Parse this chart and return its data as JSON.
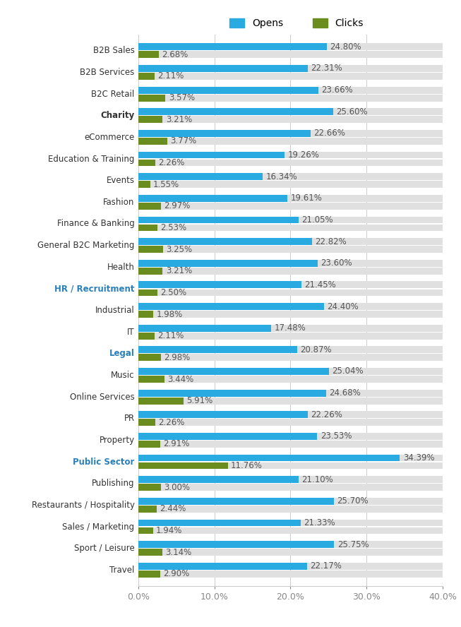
{
  "categories": [
    "B2B Sales",
    "B2B Services",
    "B2C Retail",
    "Charity",
    "eCommerce",
    "Education & Training",
    "Events",
    "Fashion",
    "Finance & Banking",
    "General B2C Marketing",
    "Health",
    "HR / Recruitment",
    "Industrial",
    "IT",
    "Legal",
    "Music",
    "Online Services",
    "PR",
    "Property",
    "Public Sector",
    "Publishing",
    "Restaurants / Hospitality",
    "Sales / Marketing",
    "Sport / Leisure",
    "Travel"
  ],
  "opens": [
    24.8,
    22.31,
    23.66,
    25.6,
    22.66,
    19.26,
    16.34,
    19.61,
    21.05,
    22.82,
    23.6,
    21.45,
    24.4,
    17.48,
    20.87,
    25.04,
    24.68,
    22.26,
    23.53,
    34.39,
    21.1,
    25.7,
    21.33,
    25.75,
    22.17
  ],
  "clicks": [
    2.68,
    2.11,
    3.57,
    3.21,
    3.77,
    2.26,
    1.55,
    2.97,
    2.53,
    3.25,
    3.21,
    2.5,
    1.98,
    2.11,
    2.98,
    3.44,
    5.91,
    2.26,
    2.91,
    11.76,
    3.0,
    2.44,
    1.94,
    3.14,
    2.9
  ],
  "opens_color": "#29ABE2",
  "clicks_color": "#6B8C1F",
  "background_color": "#FFFFFF",
  "bar_bg_color": "#E0E0E0",
  "xlim": [
    0,
    40
  ],
  "xticks": [
    0,
    10,
    20,
    30,
    40
  ],
  "xtick_labels": [
    "0.0%",
    "10.0%",
    "20.0%",
    "30.0%",
    "40.0%"
  ],
  "title_opens": "Opens",
  "title_clicks": "Clicks",
  "label_fontsize": 8.5,
  "tick_fontsize": 9,
  "legend_fontsize": 10,
  "bold_categories": [
    "Charity",
    "HR / Recruitment",
    "Legal",
    "Public Sector"
  ],
  "blue_categories": [
    "HR / Recruitment",
    "Legal",
    "Public Sector"
  ]
}
